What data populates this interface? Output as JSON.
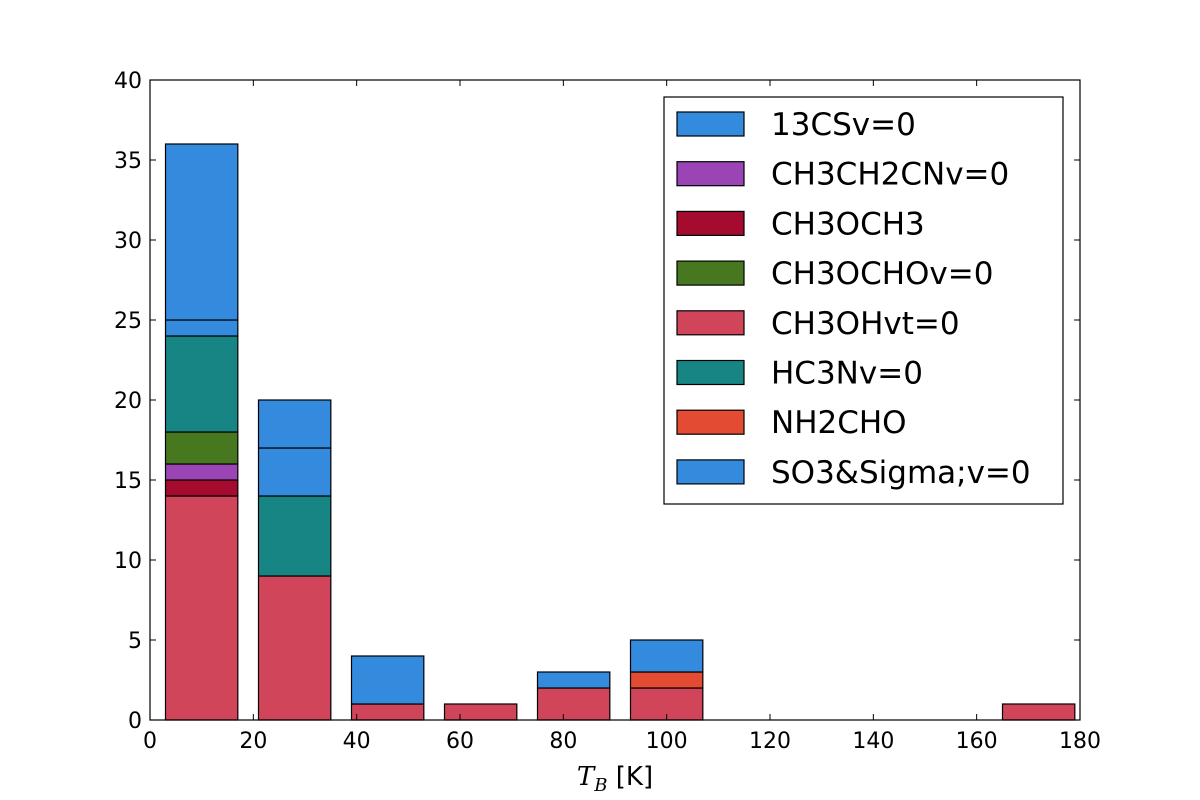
{
  "chart_data": {
    "type": "bar",
    "stacked": true,
    "title": "",
    "xlabel_math": "T",
    "xlabel_sub": "B",
    "xlabel_unit": " [K]",
    "ylabel": "",
    "xlim": [
      0,
      180
    ],
    "ylim": [
      0,
      40
    ],
    "xticks": [
      0,
      20,
      40,
      60,
      80,
      100,
      120,
      140,
      160,
      180
    ],
    "yticks": [
      0,
      5,
      10,
      15,
      20,
      25,
      30,
      35,
      40
    ],
    "grid": false,
    "legend_position": "top-right",
    "bin_centers": [
      10,
      28,
      46,
      64,
      82,
      100,
      118,
      136,
      154,
      172
    ],
    "bar_width": 14,
    "series": [
      {
        "name": "13CSv=0",
        "color": "#348ADC",
        "values": [
          1,
          3,
          3,
          0,
          1,
          2,
          0,
          0,
          0,
          0
        ]
      },
      {
        "name": "CH3CH2CNv=0",
        "color": "#9A44B6",
        "values": [
          1,
          0,
          0,
          0,
          0,
          0,
          0,
          0,
          0,
          0
        ]
      },
      {
        "name": "CH3OCH3",
        "color": "#A50B2E",
        "values": [
          1,
          0,
          0,
          0,
          0,
          0,
          0,
          0,
          0,
          0
        ]
      },
      {
        "name": "CH3OCHOv=0",
        "color": "#477820",
        "values": [
          2,
          0,
          0,
          0,
          0,
          0,
          0,
          0,
          0,
          0
        ]
      },
      {
        "name": "CH3OHvt=0",
        "color": "#D1455A",
        "values": [
          14,
          9,
          1,
          1,
          2,
          2,
          0,
          0,
          0,
          1
        ]
      },
      {
        "name": "HC3Nv=0",
        "color": "#188585",
        "values": [
          6,
          5,
          0,
          0,
          0,
          0,
          0,
          0,
          0,
          0
        ]
      },
      {
        "name": "NH2CHO",
        "color": "#E44B33",
        "values": [
          0,
          0,
          0,
          0,
          0,
          1,
          0,
          0,
          0,
          0
        ]
      },
      {
        "name": "SO3&Sigma;v=0",
        "color": "#348ADC",
        "values": [
          11,
          3,
          0,
          0,
          0,
          0,
          0,
          0,
          0,
          0
        ]
      }
    ],
    "plot_order": [
      4,
      2,
      1,
      3,
      5,
      6,
      0,
      7
    ]
  }
}
